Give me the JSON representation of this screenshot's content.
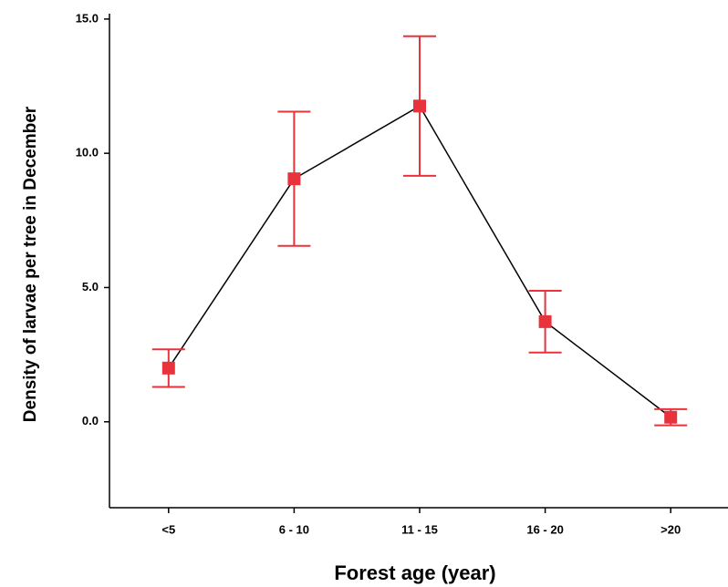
{
  "chart_data": {
    "type": "line",
    "x_label": "Forest age (year)",
    "y_label": "Density of larvae per tree in December",
    "categories": [
      "<5",
      "6 - 10",
      "11 - 15",
      "16 - 20",
      ">20"
    ],
    "series": [
      {
        "color": "#e8333c",
        "line_color": "#000000",
        "values": [
          2.0,
          9.05,
          11.76,
          3.73,
          0.17
        ],
        "errors": [
          0.7,
          2.5,
          2.6,
          1.15,
          0.3
        ]
      }
    ],
    "ylim": [
      -3.2,
      15.2
    ],
    "yticks": [
      {
        "value": 0,
        "label": "0.0"
      },
      {
        "value": 5,
        "label": "5.0"
      },
      {
        "value": 10,
        "label": "10.0"
      },
      {
        "value": 15,
        "label": "15.0"
      }
    ],
    "grid": false
  }
}
